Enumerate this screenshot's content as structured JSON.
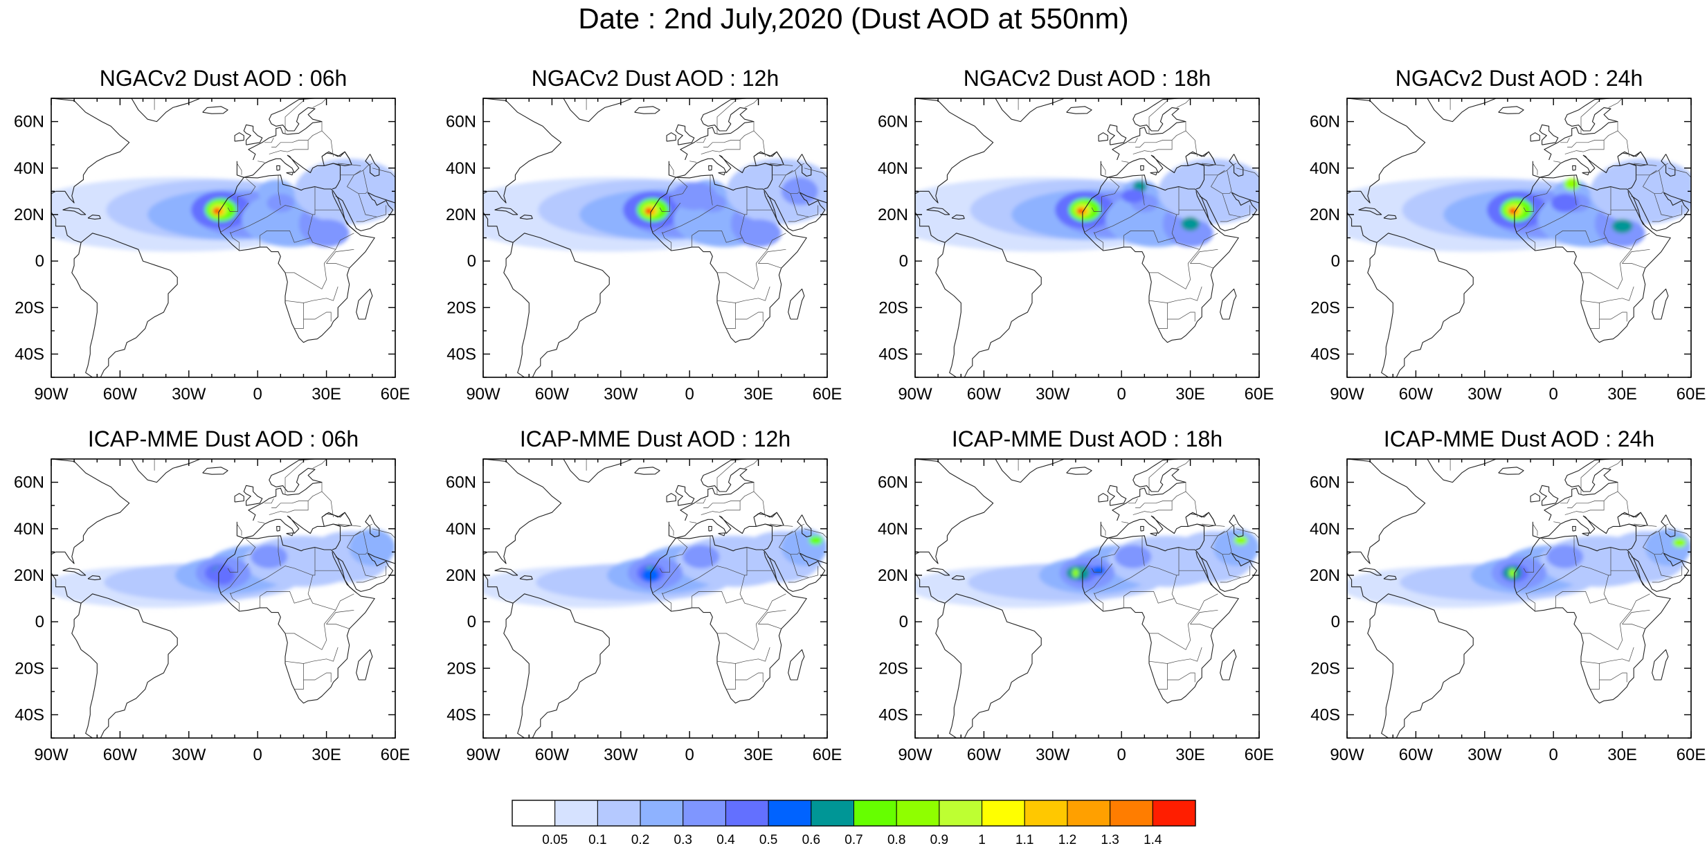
{
  "title": "Date : 2nd July,2020 (Dust AOD at 550nm)",
  "lon_ticks": [
    "90W",
    "60W",
    "30W",
    "0",
    "30E",
    "60E"
  ],
  "lat_ticks": [
    "60N",
    "40N",
    "20N",
    "0",
    "20S",
    "40S"
  ],
  "domain": {
    "lon": [
      -90,
      60
    ],
    "lat": [
      -50,
      70
    ]
  },
  "panels": [
    {
      "title": "NGACv2 Dust AOD : 06h",
      "model": "NGACv2",
      "hour": "06h"
    },
    {
      "title": "NGACv2 Dust AOD : 12h",
      "model": "NGACv2",
      "hour": "12h"
    },
    {
      "title": "NGACv2 Dust AOD : 18h",
      "model": "NGACv2",
      "hour": "18h"
    },
    {
      "title": "NGACv2 Dust AOD : 24h",
      "model": "NGACv2",
      "hour": "24h"
    },
    {
      "title": "ICAP-MME Dust AOD : 06h",
      "model": "ICAP-MME",
      "hour": "06h"
    },
    {
      "title": "ICAP-MME Dust AOD : 12h",
      "model": "ICAP-MME",
      "hour": "12h"
    },
    {
      "title": "ICAP-MME Dust AOD : 18h",
      "model": "ICAP-MME",
      "hour": "18h"
    },
    {
      "title": "ICAP-MME Dust AOD : 24h",
      "model": "ICAP-MME",
      "hour": "24h"
    }
  ],
  "colorbar": {
    "colors": [
      "#ffffff",
      "#d6e2ff",
      "#b5c9ff",
      "#8eb2ff",
      "#7f96ff",
      "#6370ff",
      "#0063ff",
      "#009696",
      "#66ff00",
      "#8fff00",
      "#beff32",
      "#ffff00",
      "#ffc800",
      "#ffa000",
      "#ff7d00",
      "#ff1e00"
    ],
    "labels": [
      "0.05",
      "0.1",
      "0.2",
      "0.3",
      "0.4",
      "0.5",
      "0.6",
      "0.7",
      "0.8",
      "0.9",
      "1",
      "1.1",
      "1.2",
      "1.3",
      "1.4"
    ]
  }
}
